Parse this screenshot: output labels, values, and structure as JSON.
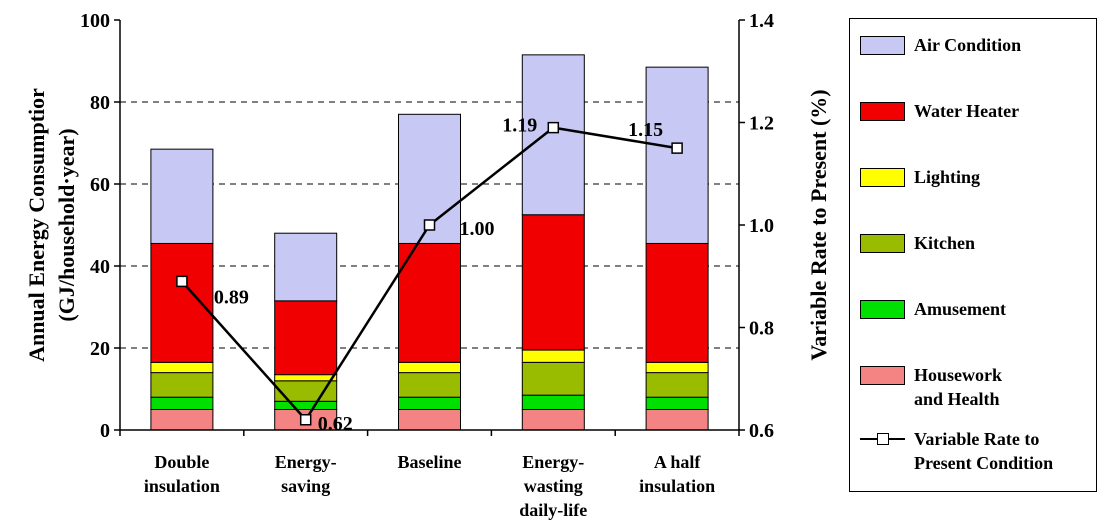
{
  "chart_data": {
    "type": "bar",
    "stacked": true,
    "categories": [
      [
        "Double",
        "insulation"
      ],
      [
        "Energy-",
        "saving"
      ],
      [
        "Baseline"
      ],
      [
        "Energy-",
        "wasting",
        "daily-life"
      ],
      [
        "A half",
        "insulation"
      ]
    ],
    "ylabel_left": [
      "Annual Energy Consumptior",
      "(GJ/household·year)"
    ],
    "ylim_left": [
      0,
      100
    ],
    "yticks_left": [
      "0",
      "20",
      "40",
      "60",
      "80",
      "100"
    ],
    "ylabel_right": "Variable Rate to Present (%)",
    "ylim_right": [
      0.6,
      1.4
    ],
    "yticks_right": [
      "0.6",
      "0.8",
      "1.0",
      "1.2",
      "1.4"
    ],
    "grid": "horizontal dashed",
    "legend_position": "right",
    "series": [
      {
        "name": [
          "Housework",
          "and Health"
        ],
        "color": "#f48484",
        "values": [
          5,
          5,
          5,
          5,
          5
        ]
      },
      {
        "name": [
          "Amusement"
        ],
        "color": "#00e000",
        "values": [
          3,
          2,
          3,
          3.5,
          3
        ]
      },
      {
        "name": [
          "Kitchen"
        ],
        "color": "#99bb00",
        "values": [
          6,
          5,
          6,
          8,
          6
        ]
      },
      {
        "name": [
          "Lighting"
        ],
        "color": "#ffff00",
        "values": [
          2.5,
          1.5,
          2.5,
          3,
          2.5
        ]
      },
      {
        "name": [
          "Water Heater"
        ],
        "color": "#f00000",
        "values": [
          29,
          18,
          29,
          33,
          29
        ]
      },
      {
        "name": [
          "Air Condition"
        ],
        "color": "#c8c8f4",
        "values": [
          23,
          16.5,
          31.5,
          39,
          43
        ]
      }
    ],
    "line_series": {
      "name": [
        "Variable Rate to",
        "Present Condition"
      ],
      "axis": "right",
      "values": [
        0.89,
        0.62,
        1.0,
        1.19,
        1.15
      ],
      "labels": [
        "0.89",
        "0.62",
        "1.00",
        "1.19",
        "1.15"
      ]
    }
  }
}
